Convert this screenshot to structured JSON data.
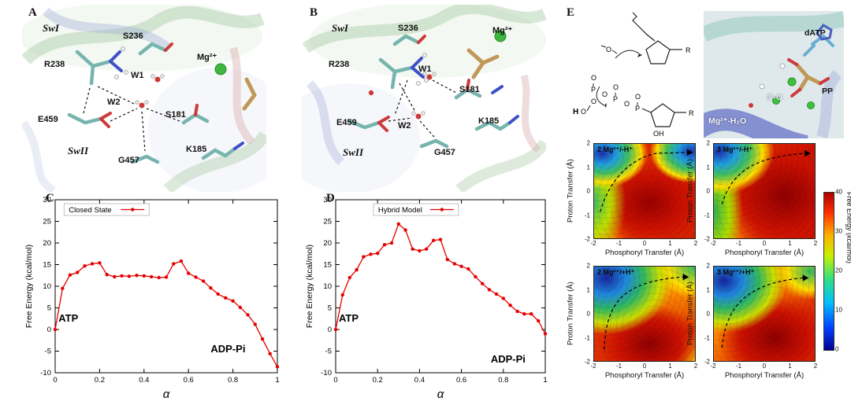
{
  "figure": {
    "panelA": {
      "label": "A",
      "annotations": {
        "swi": "SwI",
        "swii": "SwII",
        "s236": "S236",
        "mg": "Mg²⁺",
        "r238": "R238",
        "w1": "W1",
        "w2": "W2",
        "e459": "E459",
        "s181": "S181",
        "g457": "G457",
        "k185": "K185"
      }
    },
    "panelB": {
      "label": "B",
      "annotations": {
        "swi": "SwI",
        "swii": "SwII",
        "s236": "S236",
        "mg": "Mg²⁺",
        "r238": "R238",
        "w1": "W1",
        "w2": "W2",
        "e459": "E459",
        "s181": "S181",
        "g457": "G457",
        "k185": "K185"
      }
    },
    "panelC": {
      "label": "C"
    },
    "panelD": {
      "label": "D"
    },
    "panelE": {
      "label": "E",
      "scheme": {
        "h": "H",
        "o": "O",
        "p": "P",
        "r": "R",
        "oh": "OH"
      },
      "structure": {
        "datp": "dATP",
        "pp": "PP",
        "o3": "3'-O",
        "mg_h2o": "Mg²⁺-H₂O"
      }
    }
  },
  "colorbar": {
    "label": "Free Energy (kcal/mol)",
    "min": 0,
    "max": 40,
    "ticks": [
      0,
      10,
      20,
      30,
      40
    ],
    "colors_bottom_to_top": [
      "#000090",
      "#0040ff",
      "#00c0ff",
      "#30e080",
      "#c8f000",
      "#ffb000",
      "#ff3000",
      "#b00000"
    ]
  },
  "chart_data": [
    {
      "type": "line",
      "panel": "C",
      "legend": "Closed State",
      "color": "#e60000",
      "xlabel": "α",
      "ylabel": "Free Energy (kcal/mol)",
      "xlim": [
        0,
        1
      ],
      "ylim": [
        -10,
        30
      ],
      "xticks": [
        0,
        0.2,
        0.4,
        0.6,
        0.8,
        1
      ],
      "yticks": [
        -10,
        -5,
        0,
        5,
        10,
        15,
        20,
        25,
        30
      ],
      "legend_offset": 0.04,
      "x": [
        0,
        0.033,
        0.067,
        0.1,
        0.133,
        0.167,
        0.2,
        0.233,
        0.267,
        0.3,
        0.333,
        0.367,
        0.4,
        0.433,
        0.467,
        0.5,
        0.533,
        0.567,
        0.6,
        0.633,
        0.667,
        0.7,
        0.733,
        0.767,
        0.8,
        0.833,
        0.867,
        0.9,
        0.933,
        0.967,
        1
      ],
      "y": [
        0,
        9.5,
        12.6,
        13.2,
        14.7,
        15.2,
        15.4,
        12.7,
        12.2,
        12.4,
        12.3,
        12.5,
        12.4,
        12.2,
        12.0,
        12.1,
        15.2,
        15.8,
        13.0,
        12.1,
        11.2,
        9.6,
        8.2,
        7.3,
        6.6,
        5.1,
        3.4,
        1.2,
        -2.2,
        -5.6,
        -8.6
      ],
      "annotations": [
        {
          "text": "ATP",
          "x": 0.015,
          "y": 1.8
        },
        {
          "text": "ADP-Pi",
          "x": 0.7,
          "y": -5.3
        }
      ]
    },
    {
      "type": "line",
      "panel": "D",
      "legend": "Hybrid Model",
      "color": "#e60000",
      "xlabel": "α",
      "ylabel": "Free Energy (kcal/mol)",
      "xlim": [
        0,
        1
      ],
      "ylim": [
        -10,
        30
      ],
      "xticks": [
        0,
        0.2,
        0.4,
        0.6,
        0.8,
        1
      ],
      "yticks": [
        -10,
        -5,
        0,
        5,
        10,
        15,
        20,
        25,
        30
      ],
      "legend_offset": 0.18,
      "x": [
        0,
        0.033,
        0.067,
        0.1,
        0.133,
        0.167,
        0.2,
        0.233,
        0.267,
        0.3,
        0.333,
        0.367,
        0.4,
        0.433,
        0.467,
        0.5,
        0.533,
        0.567,
        0.6,
        0.633,
        0.667,
        0.7,
        0.733,
        0.767,
        0.8,
        0.833,
        0.867,
        0.9,
        0.933,
        0.967,
        1
      ],
      "y": [
        0,
        8.0,
        12.0,
        13.8,
        16.8,
        17.4,
        17.6,
        19.6,
        20.0,
        24.4,
        23.0,
        18.6,
        18.2,
        18.6,
        20.6,
        20.8,
        16.2,
        15.2,
        14.6,
        14.0,
        12.2,
        10.6,
        9.2,
        8.2,
        7.2,
        5.6,
        4.2,
        3.6,
        3.6,
        2.0,
        -1.0
      ],
      "annotations": [
        {
          "text": "ATP",
          "x": 0.015,
          "y": 1.8
        },
        {
          "text": "ADP-Pi",
          "x": 0.74,
          "y": -7.6
        }
      ]
    },
    {
      "type": "heatmap",
      "panel": "E",
      "title": "2 Mg²⁺/-H⁺",
      "xlabel": "Phosphoryl Transfer (Å)",
      "ylabel": "Proton Transfer (Å)",
      "xlim": [
        -2,
        2
      ],
      "ylim": [
        -2,
        2
      ],
      "xticks": [
        -2,
        -1,
        0,
        1,
        2
      ],
      "yticks": [
        -2,
        -1,
        0,
        1,
        2
      ],
      "zlabel": "Free Energy (kcal/mol)",
      "zlim": [
        0,
        40
      ],
      "colormap": "jet",
      "pattern": "broad red high-energy plateau center/right; blue minima at top-left and top-right corners; dashed black reaction path from bottom-left to arrow at top-right"
    },
    {
      "type": "heatmap",
      "panel": "E",
      "title": "3 Mg²⁺/-H⁺",
      "xlabel": "Phosphoryl Transfer (Å)",
      "ylabel": "Proton Transfer (Å)",
      "xlim": [
        -2,
        2
      ],
      "ylim": [
        -2,
        2
      ],
      "xticks": [
        -2,
        -1,
        0,
        1,
        2
      ],
      "yticks": [
        -2,
        -1,
        0,
        1,
        2
      ],
      "zlabel": "Free Energy (kcal/mol)",
      "zlim": [
        0,
        40
      ],
      "colormap": "jet",
      "pattern": "red plateau dominating right/center; blue minimum at top-left corner; green band along left edge; dashed reaction path along upper region to arrow at top-right"
    },
    {
      "type": "heatmap",
      "panel": "E",
      "title": "2 Mg²⁺/+H⁺",
      "xlabel": "Phosphoryl Transfer (Å)",
      "ylabel": "Proton Transfer (Å)",
      "xlim": [
        -2,
        2
      ],
      "ylim": [
        -2,
        2
      ],
      "xticks": [
        -2,
        -1,
        0,
        1,
        2
      ],
      "yticks": [
        -2,
        -1,
        0,
        1,
        2
      ],
      "zlabel": "Free Energy (kcal/mol)",
      "zlim": [
        0,
        40
      ],
      "colormap": "jet",
      "pattern": "blue/cyan basin over upper-left quadrant; red high-energy region along bottom; dashed path rises steeply at left then runs right to arrow at top-right"
    },
    {
      "type": "heatmap",
      "panel": "E",
      "title": "3 Mg²⁺/+H⁺",
      "xlabel": "Phosphoryl Transfer (Å)",
      "ylabel": "Proton Transfer (Å)",
      "xlim": [
        -2,
        2
      ],
      "ylim": [
        -2,
        2
      ],
      "xticks": [
        -2,
        -1,
        0,
        1,
        2
      ],
      "yticks": [
        -2,
        -1,
        0,
        1,
        2
      ],
      "zlabel": "Free Energy (kcal/mol)",
      "zlim": [
        0,
        40
      ],
      "colormap": "jet",
      "pattern": "blue basin upper-left; red high-energy region bottom-right/center; diagonal green-yellow transition; dashed reaction path to arrow at top-right"
    }
  ]
}
